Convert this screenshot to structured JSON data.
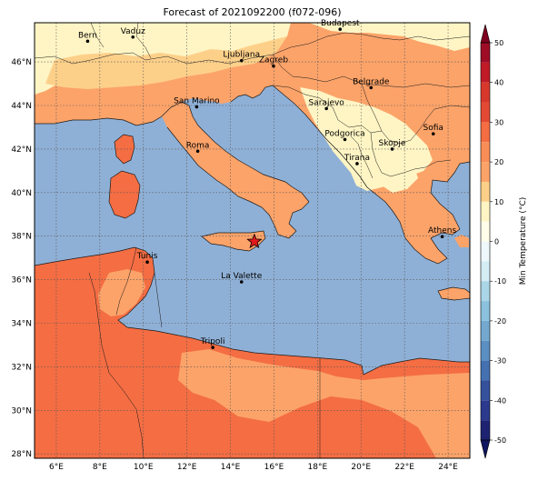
{
  "title": "Forecast of 2021092200 (f072-096)",
  "colorbar": {
    "label": "Min Temperature (°C)",
    "ticks": [
      50,
      40,
      30,
      20,
      10,
      0,
      -10,
      -20,
      -30,
      -40,
      -50
    ],
    "bands": [
      {
        "from": 45,
        "to": 50,
        "color": "#9e0c26"
      },
      {
        "from": 40,
        "to": 45,
        "color": "#c01b27"
      },
      {
        "from": 35,
        "to": 40,
        "color": "#d8382b"
      },
      {
        "from": 30,
        "to": 35,
        "color": "#e34a33"
      },
      {
        "from": 25,
        "to": 30,
        "color": "#f46d43"
      },
      {
        "from": 20,
        "to": 25,
        "color": "#f88d57"
      },
      {
        "from": 15,
        "to": 20,
        "color": "#fca369"
      },
      {
        "from": 10,
        "to": 15,
        "color": "#fdd08a"
      },
      {
        "from": 5,
        "to": 10,
        "color": "#fff5c4"
      },
      {
        "from": 0,
        "to": 5,
        "color": "#fffce9"
      },
      {
        "from": -5,
        "to": 0,
        "color": "#eef8fb"
      },
      {
        "from": -10,
        "to": -5,
        "color": "#d4ecf4"
      },
      {
        "from": -15,
        "to": -10,
        "color": "#abd6e8"
      },
      {
        "from": -20,
        "to": -15,
        "color": "#8cc1dd"
      },
      {
        "from": -25,
        "to": -20,
        "color": "#74a8cf"
      },
      {
        "from": -30,
        "to": -25,
        "color": "#5b8fc2"
      },
      {
        "from": -35,
        "to": -30,
        "color": "#4571b1"
      },
      {
        "from": -40,
        "to": -35,
        "color": "#35519c"
      },
      {
        "from": -45,
        "to": -40,
        "color": "#2b3a8c"
      },
      {
        "from": -50,
        "to": -45,
        "color": "#1d2371"
      }
    ]
  },
  "axes": {
    "lon_ticks": [
      "6°E",
      "8°E",
      "10°E",
      "12°E",
      "14°E",
      "16°E",
      "18°E",
      "20°E",
      "22°E",
      "24°E"
    ],
    "lat_ticks": [
      "46°N",
      "44°N",
      "42°N",
      "40°N",
      "38°N",
      "36°N",
      "34°N",
      "32°N",
      "30°N",
      "28°N"
    ],
    "lon_range": [
      5,
      25
    ],
    "lat_range": [
      27.8,
      47.8
    ]
  },
  "cities": [
    {
      "name": "Bern",
      "lon": 7.44,
      "lat": 46.95
    },
    {
      "name": "Vaduz",
      "lon": 9.52,
      "lat": 47.14
    },
    {
      "name": "Budapest",
      "lon": 19.04,
      "lat": 47.5
    },
    {
      "name": "Ljubljana",
      "lon": 14.51,
      "lat": 46.06
    },
    {
      "name": "Zagreb",
      "lon": 15.98,
      "lat": 45.81
    },
    {
      "name": "Belgrade",
      "lon": 20.46,
      "lat": 44.82
    },
    {
      "name": "San Marino",
      "lon": 12.45,
      "lat": 43.94
    },
    {
      "name": "Sarajevo",
      "lon": 18.41,
      "lat": 43.86
    },
    {
      "name": "Sofia",
      "lon": 23.32,
      "lat": 42.7
    },
    {
      "name": "Podgorica",
      "lon": 19.26,
      "lat": 42.44
    },
    {
      "name": "Skopje",
      "lon": 21.43,
      "lat": 42.0
    },
    {
      "name": "Roma",
      "lon": 12.5,
      "lat": 41.9
    },
    {
      "name": "Tirana",
      "lon": 19.82,
      "lat": 41.33
    },
    {
      "name": "Athens",
      "lon": 23.73,
      "lat": 37.98
    },
    {
      "name": "Tunis",
      "lon": 10.18,
      "lat": 36.81
    },
    {
      "name": "La Valette",
      "lon": 14.51,
      "lat": 35.9
    },
    {
      "name": "Tripoli",
      "lon": 13.19,
      "lat": 32.89
    }
  ],
  "marker": {
    "lon": 15.1,
    "lat": 37.75,
    "color": "#e31a1c"
  },
  "colors": {
    "sea": "#8fb0d6",
    "land_warm": "#fca369",
    "land_hot": "#f46d43",
    "land_mild": "#fff5c4",
    "land_cool": "#fdd08a"
  }
}
